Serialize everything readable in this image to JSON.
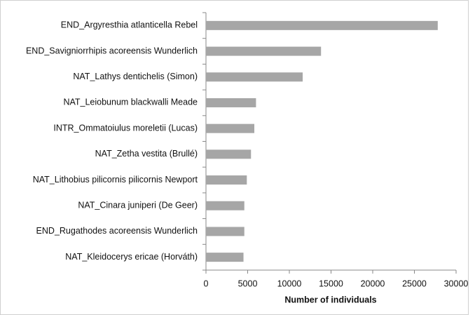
{
  "chart_data": {
    "type": "bar",
    "orientation": "horizontal",
    "categories": [
      "END_Argyresthia atlanticella Rebel",
      "END_Savigniorrhipis acoreensis Wunderlich",
      "NAT_Lathys dentichelis (Simon)",
      "NAT_Leiobunum blackwalli Meade",
      "INTR_Ommatoiulus moreletii (Lucas)",
      "NAT_Zetha vestita (Brullé)",
      "NAT_Lithobius pilicornis pilicornis Newport",
      "NAT_Cinara juniperi (De Geer)",
      "END_Rugathodes  acoreensis Wunderlich",
      "NAT_Kleidocerys ericae (Horváth)"
    ],
    "values": [
      27800,
      13800,
      11600,
      6000,
      5800,
      5400,
      4900,
      4600,
      4600,
      4500
    ],
    "color": "#a6a6a6",
    "xlabel": "Number of individuals",
    "xlim": [
      0,
      30000
    ],
    "xticks": [
      0,
      5000,
      10000,
      15000,
      20000,
      25000,
      30000
    ],
    "grid": false
  }
}
